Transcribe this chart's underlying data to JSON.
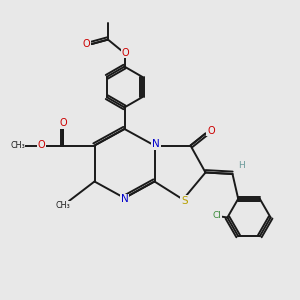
{
  "bg_color": "#e8e8e8",
  "bond_color": "#1a1a1a",
  "n_color": "#0000cc",
  "o_color": "#cc0000",
  "s_color": "#b8a000",
  "cl_color": "#3a8a3a",
  "h_color": "#6a9a9a",
  "line_width": 1.4,
  "figsize": [
    3.0,
    3.0
  ],
  "dpi": 100,
  "xlim": [
    0,
    10
  ],
  "ylim": [
    0,
    10
  ]
}
